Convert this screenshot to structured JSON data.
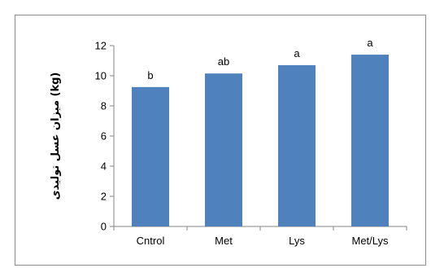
{
  "chart_data": {
    "type": "bar",
    "title": "",
    "xlabel": "",
    "ylabel": "میزان عسل تولیدی (kg)",
    "categories": [
      "Cntrol",
      "Met",
      "Lys",
      "Met/Lys"
    ],
    "values": [
      9.25,
      10.15,
      10.7,
      11.4
    ],
    "data_labels": [
      "b",
      "ab",
      "a",
      "a"
    ],
    "ylim": [
      0,
      12
    ],
    "yticks": [
      0,
      2,
      4,
      6,
      8,
      10,
      12
    ],
    "grid": false,
    "legend": "none",
    "bar_color": "#4f81bd"
  }
}
